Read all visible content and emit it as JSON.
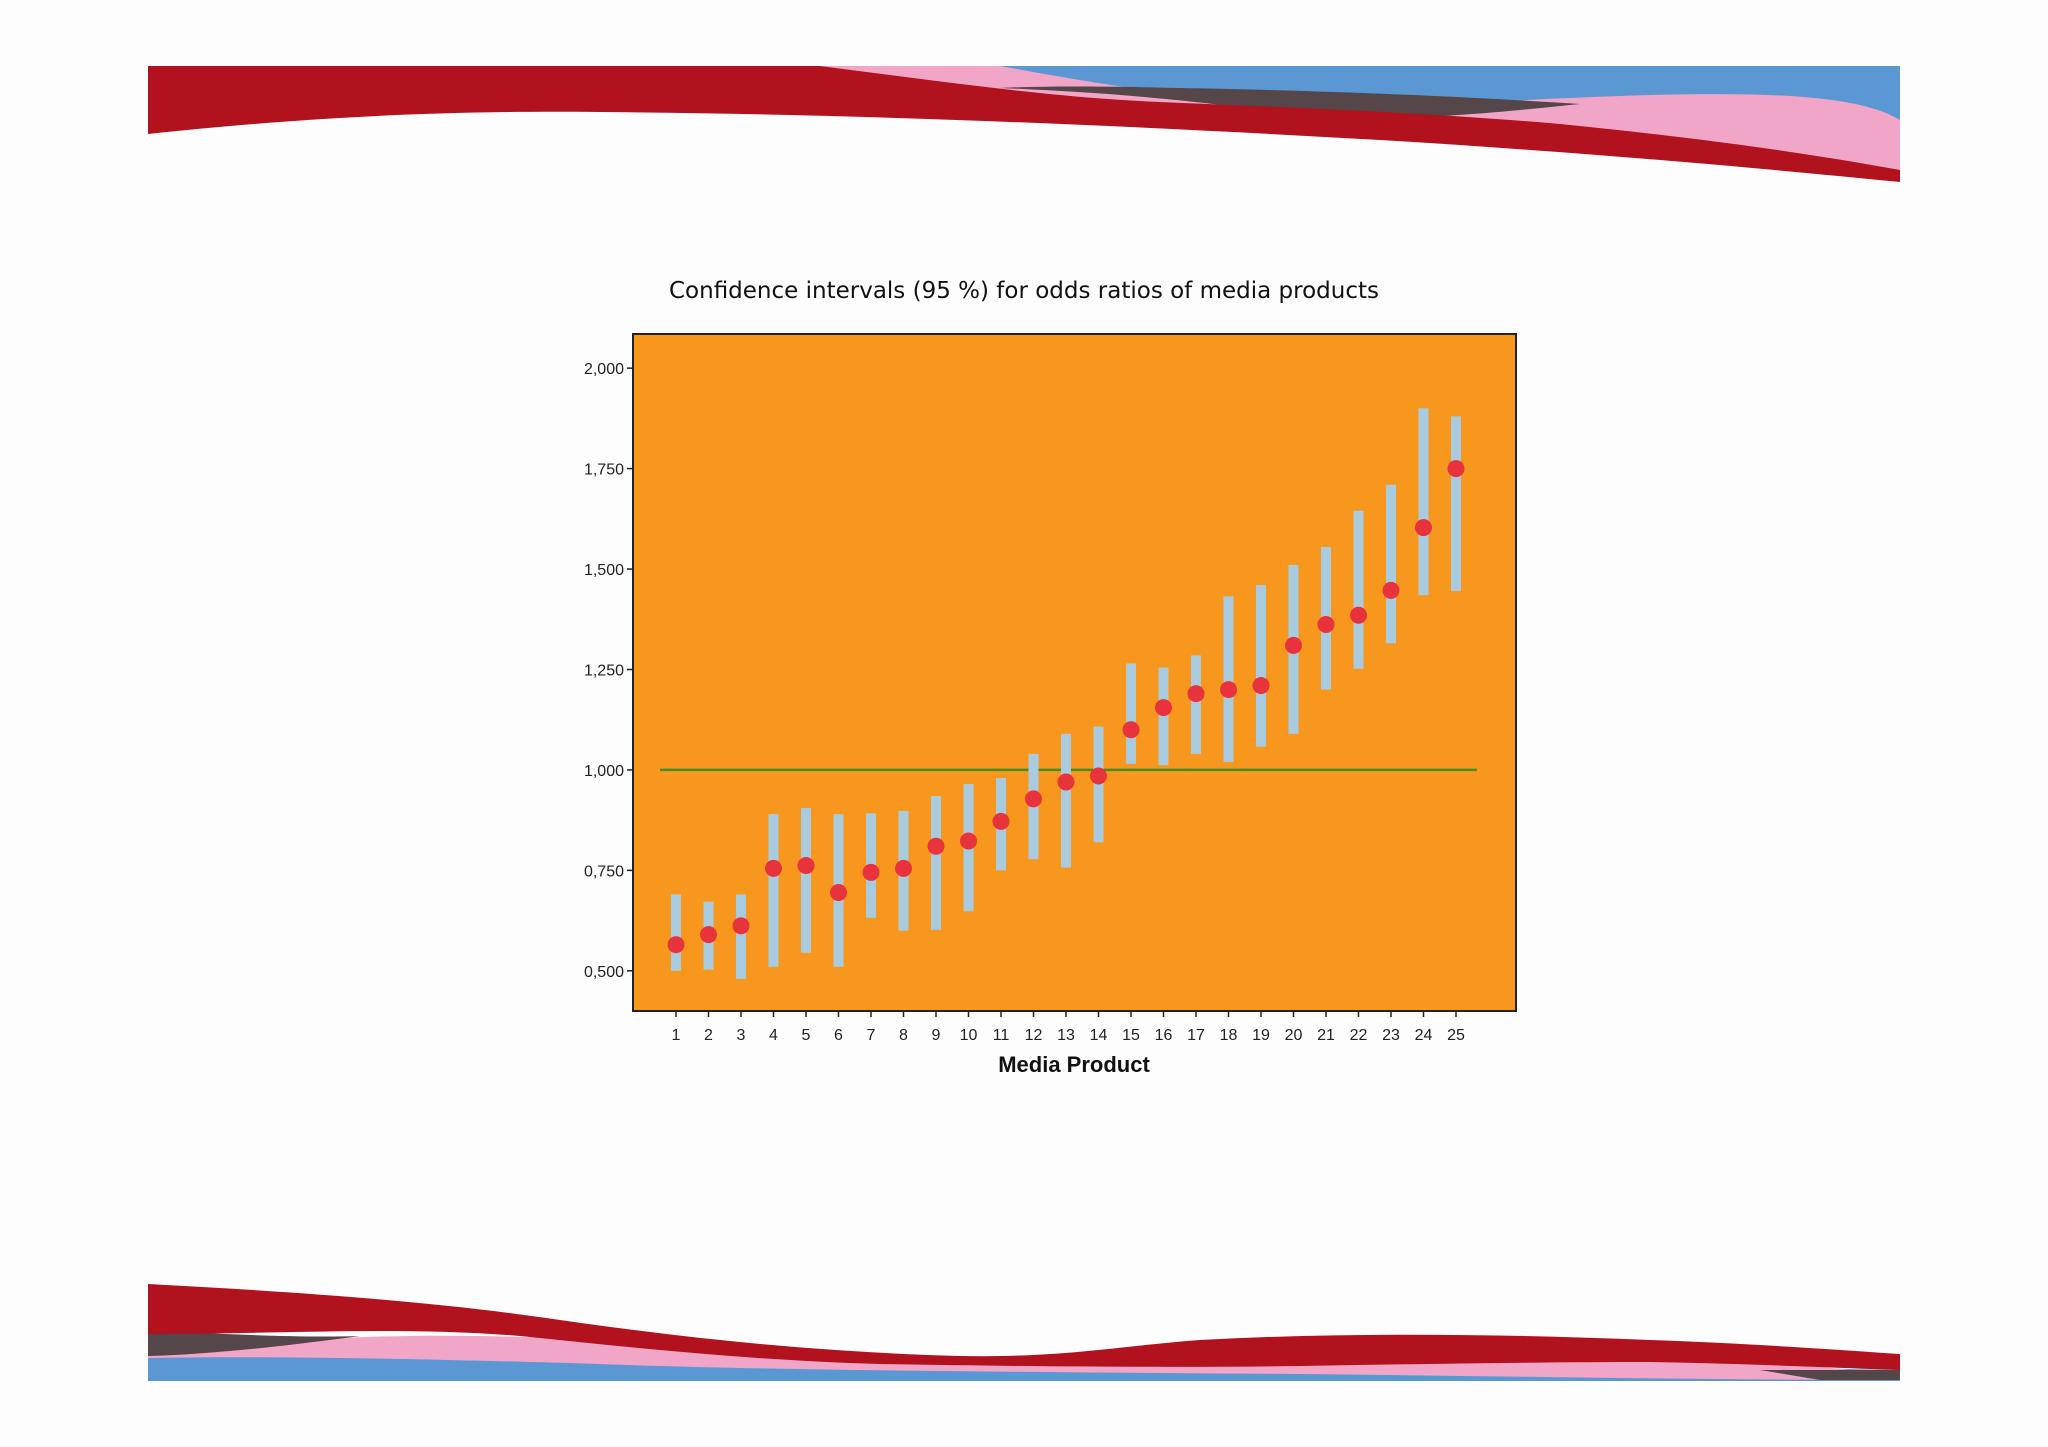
{
  "colors": {
    "background": "#fdfdfd",
    "plot_background": "#f8971e",
    "ci_bar": "#a9cbe0",
    "point": "#e8323c",
    "reference_line": "#4a8a1f",
    "wave_red": "#b2121e",
    "wave_blue": "#5b97d3",
    "wave_pink": "#f1a6c8",
    "wave_dark": "#55464a"
  },
  "chart_data": {
    "type": "scatter",
    "title": "Confidence intervals (95 %) for odds ratios of media products",
    "xlabel": "Media Product",
    "ylabel": "",
    "ylim": [
      0.4,
      2.085
    ],
    "yticks": [
      0.5,
      0.75,
      1.0,
      1.25,
      1.5,
      1.75,
      2.0
    ],
    "ytick_labels": [
      "0,500",
      "0,750",
      "1,000",
      "1,250",
      "1,500",
      "1,750",
      "2,000"
    ],
    "categories": [
      "1",
      "2",
      "3",
      "4",
      "5",
      "6",
      "7",
      "8",
      "9",
      "10",
      "11",
      "12",
      "13",
      "14",
      "15",
      "16",
      "17",
      "18",
      "19",
      "20",
      "21",
      "22",
      "23",
      "24",
      "25"
    ],
    "odds_ratio": [
      0.565,
      0.59,
      0.612,
      0.755,
      0.762,
      0.695,
      0.745,
      0.755,
      0.81,
      0.823,
      0.872,
      0.928,
      0.97,
      0.985,
      1.1,
      1.155,
      1.19,
      1.2,
      1.21,
      1.31,
      1.362,
      1.385,
      1.447,
      1.603,
      1.75
    ],
    "ci_lower": [
      0.5,
      0.503,
      0.48,
      0.51,
      0.545,
      0.51,
      0.632,
      0.6,
      0.602,
      0.648,
      0.75,
      0.778,
      0.757,
      0.82,
      1.015,
      1.012,
      1.04,
      1.02,
      1.058,
      1.09,
      1.2,
      1.252,
      1.315,
      1.435,
      1.445
    ],
    "ci_upper": [
      0.69,
      0.672,
      0.69,
      0.89,
      0.905,
      0.89,
      0.892,
      0.898,
      0.935,
      0.965,
      0.98,
      1.04,
      1.09,
      1.108,
      1.265,
      1.255,
      1.285,
      1.432,
      1.46,
      1.51,
      1.555,
      1.645,
      1.71,
      1.9,
      1.88
    ],
    "reference_line": 1.0,
    "grid": false,
    "legend": "none"
  }
}
